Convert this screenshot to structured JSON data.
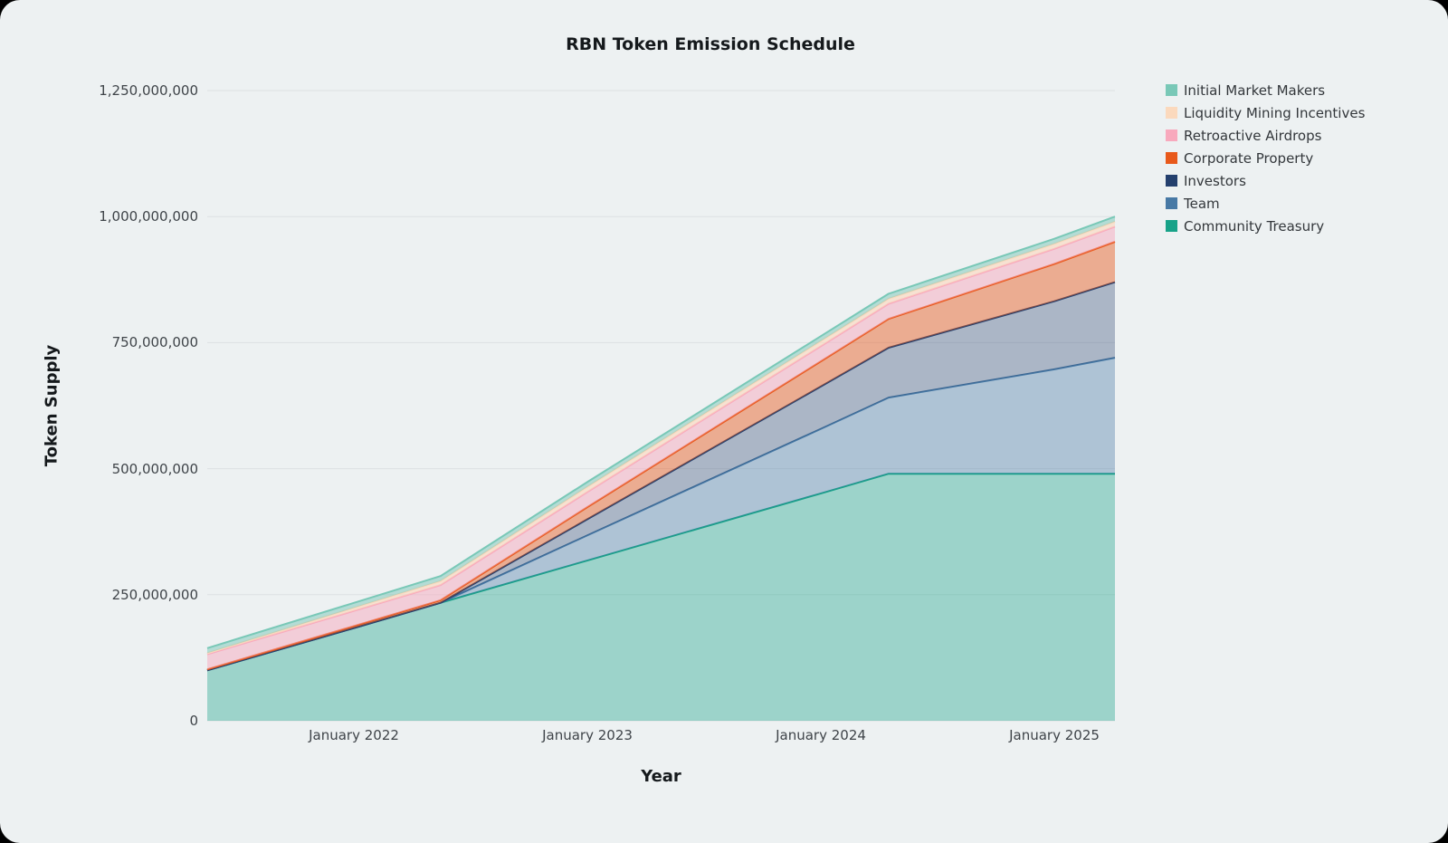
{
  "page": {
    "background": "#edf1f2",
    "outer_background": "#000000"
  },
  "chart_data": {
    "type": "area",
    "stacked": true,
    "title": "RBN Token Emission Schedule",
    "xlabel": "Year",
    "ylabel": "Token Supply",
    "grid": true,
    "grid_color": "#dde1e3",
    "background": "#edf1f2",
    "legend_position": "top-right",
    "x_unit": "decimal_year",
    "x": [
      2021.37,
      2022.0,
      2022.37,
      2023.0,
      2024.0,
      2024.29,
      2025.0,
      2025.26
    ],
    "x_range": [
      2021.37,
      2025.26
    ],
    "y_range": [
      0,
      1250000000
    ],
    "x_ticks": [
      {
        "value": 2022.0,
        "label": "January 2022"
      },
      {
        "value": 2023.0,
        "label": "January 2023"
      },
      {
        "value": 2024.0,
        "label": "January 2024"
      },
      {
        "value": 2025.0,
        "label": "January 2025"
      }
    ],
    "y_ticks": [
      {
        "value": 0,
        "label": "0"
      },
      {
        "value": 250000000,
        "label": "250,000,000"
      },
      {
        "value": 500000000,
        "label": "500,000,000"
      },
      {
        "value": 750000000,
        "label": "750,000,000"
      },
      {
        "value": 1000000000,
        "label": "1,000,000,000"
      },
      {
        "value": 1250000000,
        "label": "1,250,000,000"
      }
    ],
    "stack_note": "series listed in legend order (top to bottom); stacked bottom-to-top in reverse of this order; final total supply 1,000,000,000",
    "series": [
      {
        "name": "Initial Market Makers",
        "color": "#79c8b7",
        "fill_opacity": 0.5,
        "values": [
          10000000,
          10000000,
          10000000,
          10000000,
          10000000,
          10000000,
          10000000,
          10000000
        ]
      },
      {
        "name": "Liquidity Mining Incentives",
        "color": "#fbd9bd",
        "fill_opacity": 0.6,
        "values": [
          2000000,
          6000000,
          8000000,
          10000000,
          10000000,
          10000000,
          10000000,
          10000000
        ]
      },
      {
        "name": "Retroactive Airdrops",
        "color": "#f8a9bd",
        "fill_opacity": 0.5,
        "values": [
          30000000,
          30000000,
          30000000,
          30000000,
          30000000,
          30000000,
          30000000,
          30000000
        ]
      },
      {
        "name": "Corporate Property",
        "color": "#e8591b",
        "fill_opacity": 0.45,
        "values": [
          2000000,
          4000000,
          5000000,
          24000000,
          50000000,
          57000000,
          74000000,
          80000000
        ]
      },
      {
        "name": "Investors",
        "color": "#24406e",
        "fill_opacity": 0.33,
        "values": [
          0,
          0,
          0,
          32000000,
          84000000,
          99000000,
          135000000,
          150000000
        ]
      },
      {
        "name": "Team",
        "color": "#4779a5",
        "fill_opacity": 0.38,
        "values": [
          0,
          0,
          0,
          50000000,
          128000000,
          151000000,
          207000000,
          230000000
        ]
      },
      {
        "name": "Community Treasury",
        "color": "#17a288",
        "fill_opacity": 0.38,
        "values": [
          100000000,
          184000000,
          234000000,
          318000000,
          451000000,
          490000000,
          490000000,
          490000000
        ]
      }
    ]
  }
}
